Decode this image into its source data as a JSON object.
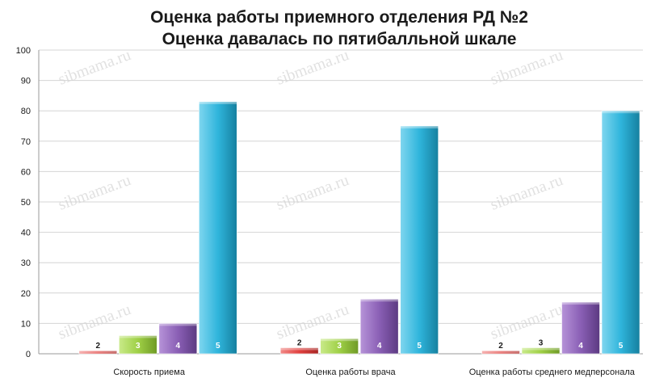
{
  "chart_data": {
    "type": "bar",
    "title": "Оценка работы приемного отделения РД №2",
    "subtitle": "Оценка давалась по пятибалльной шкале",
    "categories": [
      "Скорость приема",
      "Оценка работы врача",
      "Оценка работы среднего медперсонала"
    ],
    "series": [
      {
        "name": "2",
        "color": "#e0403e",
        "values": [
          1,
          2,
          1
        ]
      },
      {
        "name": "3",
        "color": "#9fd046",
        "values": [
          6,
          5,
          2
        ]
      },
      {
        "name": "4",
        "color": "#8a5fb5",
        "values": [
          10,
          18,
          17
        ]
      },
      {
        "name": "5",
        "color": "#2fb5dc",
        "values": [
          83,
          75,
          80
        ]
      }
    ],
    "ylim": [
      0,
      100
    ],
    "yticks": [
      0,
      10,
      20,
      30,
      40,
      50,
      60,
      70,
      80,
      90,
      100
    ],
    "grid": true,
    "xlabel": "",
    "ylabel": "",
    "watermark": "sibmama.ru"
  }
}
